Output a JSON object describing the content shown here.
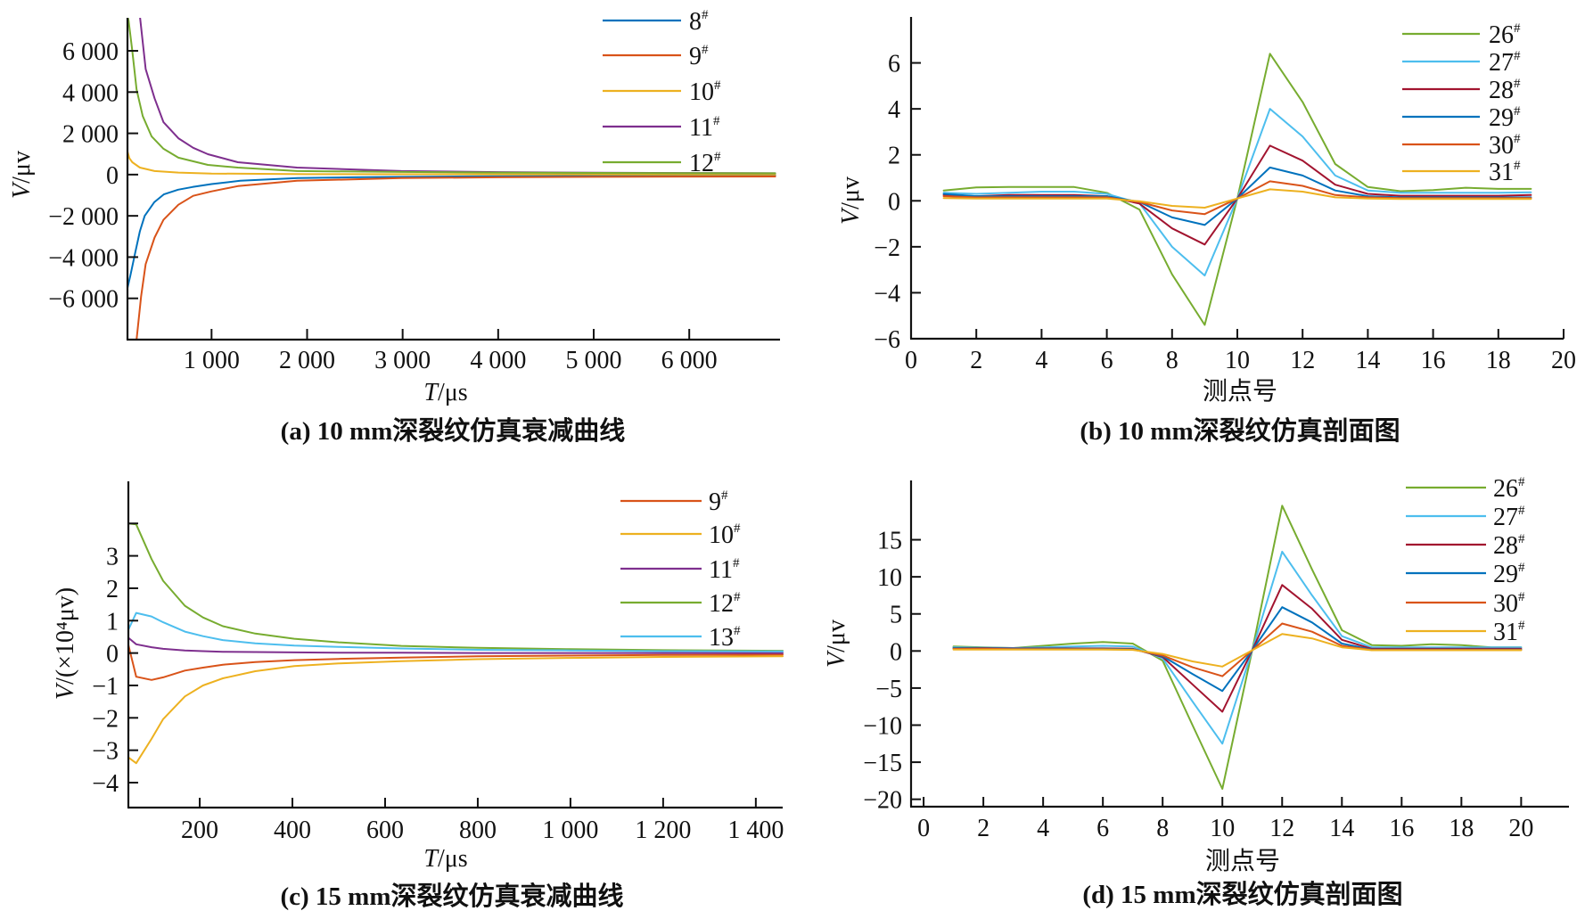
{
  "chart_data": [
    {
      "panel": "a",
      "type": "line",
      "title": "(a) 10 mm深裂纹仿真衰减曲线",
      "xlabel": "T/μs",
      "ylabel": "V/μv",
      "xlim": [
        120,
        6950
      ],
      "ylim": [
        -8000,
        7600
      ],
      "grid": false,
      "legend_position": "top-right",
      "xticks": [
        1000,
        2000,
        3000,
        4000,
        5000,
        6000
      ],
      "xtick_labels": [
        "1 000",
        "2 000",
        "3 000",
        "4 000",
        "5 000",
        "6 000"
      ],
      "yticks": [
        -6000,
        -4000,
        -2000,
        0,
        2000,
        4000,
        6000
      ],
      "ytick_labels": [
        "−6 000",
        "−4 000",
        "−2 000",
        "0",
        "2 000",
        "4 000",
        "6 000"
      ],
      "series": [
        {
          "name": "8#",
          "color": "#0072BD",
          "x": [
            120,
            150,
            200,
            250,
            300,
            400,
            500,
            650,
            800,
            1000,
            1300,
            1900,
            2500,
            3000,
            4000,
            5000,
            6000,
            6900
          ],
          "y": [
            -5500,
            -4900,
            -3800,
            -2750,
            -2000,
            -1340,
            -960,
            -730,
            -600,
            -460,
            -300,
            -170,
            -130,
            -110,
            -80,
            -65,
            -55,
            -50
          ]
        },
        {
          "name": "9#",
          "color": "#D95319",
          "x": [
            190,
            215,
            263,
            310,
            404,
            497,
            653,
            808,
            995,
            1275,
            1895,
            2985,
            4000,
            5000,
            6000,
            6900
          ],
          "y": [
            -9500,
            -8000,
            -5900,
            -4340,
            -3050,
            -2190,
            -1460,
            -1030,
            -820,
            -560,
            -300,
            -170,
            -130,
            -110,
            -95,
            -90
          ]
        },
        {
          "name": "10#",
          "color": "#EDB120",
          "x": [
            120,
            140,
            170,
            250,
            404,
            653,
            1000,
            2000,
            4000,
            6900
          ],
          "y": [
            1120,
            800,
            600,
            340,
            170,
            100,
            50,
            20,
            10,
            5
          ]
        },
        {
          "name": "11#",
          "color": "#7E2F8E",
          "x": [
            240,
            250,
            310,
            404,
            497,
            653,
            808,
            962,
            1275,
            1895,
            2985,
            4000,
            5000,
            6000,
            6900
          ],
          "y": [
            8500,
            7700,
            5120,
            3700,
            2540,
            1760,
            1300,
            990,
            600,
            340,
            170,
            120,
            90,
            75,
            65
          ]
        },
        {
          "name": "12#",
          "color": "#77AC30",
          "x": [
            120,
            131,
            170,
            215,
            280,
            373,
            497,
            653,
            962,
            1275,
            1895,
            2985,
            4000,
            5000,
            6000,
            6900
          ],
          "y": [
            7700,
            7480,
            6000,
            4130,
            2840,
            1850,
            1250,
            820,
            470,
            340,
            170,
            130,
            100,
            80,
            70,
            65
          ]
        }
      ]
    },
    {
      "panel": "b",
      "type": "line",
      "title": "(b) 10 mm深裂纹仿真剖面图",
      "xlabel": "测点号",
      "ylabel": "V/μv",
      "xlim": [
        0,
        20
      ],
      "ylim": [
        -6,
        8
      ],
      "grid": false,
      "legend_position": "top-right",
      "xticks": [
        0,
        2,
        4,
        6,
        8,
        10,
        12,
        14,
        16,
        18,
        20
      ],
      "xtick_labels": [
        "0",
        "2",
        "4",
        "6",
        "8",
        "10",
        "12",
        "14",
        "16",
        "18",
        "20"
      ],
      "yticks": [
        -6,
        -4,
        -2,
        0,
        2,
        4,
        6
      ],
      "ytick_labels": [
        "−6",
        "−4",
        "−2",
        "0",
        "2",
        "4",
        "6"
      ],
      "x": [
        1,
        2,
        3,
        4,
        5,
        6,
        7,
        8,
        9,
        10,
        11,
        12,
        13,
        14,
        15,
        16,
        17,
        18,
        19
      ],
      "series": [
        {
          "name": "26#",
          "color": "#77AC30",
          "y": [
            0.45,
            0.58,
            0.6,
            0.6,
            0.6,
            0.35,
            -0.38,
            -3.2,
            -5.4,
            0.1,
            6.4,
            4.3,
            1.6,
            0.6,
            0.42,
            0.47,
            0.57,
            0.52,
            0.52
          ]
        },
        {
          "name": "27#",
          "color": "#4DBEEE",
          "y": [
            0.35,
            0.3,
            0.35,
            0.4,
            0.4,
            0.3,
            -0.1,
            -2.0,
            -3.25,
            0.1,
            4.0,
            2.8,
            1.1,
            0.45,
            0.35,
            0.35,
            0.35,
            0.35,
            0.37
          ]
        },
        {
          "name": "28#",
          "color": "#A2142F",
          "y": [
            0.25,
            0.2,
            0.25,
            0.25,
            0.25,
            0.2,
            -0.12,
            -1.2,
            -1.9,
            0.1,
            2.4,
            1.75,
            0.7,
            0.3,
            0.22,
            0.22,
            0.22,
            0.22,
            0.25
          ]
        },
        {
          "name": "29#",
          "color": "#0072BD",
          "y": [
            0.3,
            0.2,
            0.2,
            0.2,
            0.2,
            0.2,
            -0.05,
            -0.72,
            -1.05,
            0.1,
            1.45,
            1.1,
            0.45,
            0.2,
            0.15,
            0.15,
            0.15,
            0.15,
            0.15
          ]
        },
        {
          "name": "30#",
          "color": "#D95319",
          "y": [
            0.2,
            0.15,
            0.15,
            0.15,
            0.15,
            0.15,
            -0.05,
            -0.42,
            -0.58,
            0.1,
            0.85,
            0.65,
            0.25,
            0.15,
            0.12,
            0.12,
            0.12,
            0.12,
            0.12
          ]
        },
        {
          "name": "31#",
          "color": "#EDB120",
          "y": [
            0.12,
            0.1,
            0.1,
            0.1,
            0.1,
            0.1,
            -0.02,
            -0.22,
            -0.3,
            0.1,
            0.5,
            0.4,
            0.15,
            0.1,
            0.08,
            0.08,
            0.08,
            0.08,
            0.08
          ]
        }
      ]
    },
    {
      "panel": "c",
      "type": "line",
      "title": "(c) 15 mm深裂纹仿真衰减曲线",
      "xlabel": "T/μs",
      "ylabel": "V/(×10⁴μv)",
      "xlim": [
        46,
        1458
      ],
      "ylim": [
        -4.77,
        5.3
      ],
      "grid": false,
      "legend_position": "top-right",
      "xticks": [
        200,
        400,
        600,
        800,
        1000,
        1200,
        1400
      ],
      "xtick_labels": [
        "200",
        "400",
        "600",
        "800",
        "1 000",
        "1 200",
        "1 400"
      ],
      "yticks": [
        -4,
        -3,
        -2,
        -1,
        0,
        1,
        2,
        3,
        4
      ],
      "ytick_labels": [
        "−4",
        "−3",
        "−2",
        "−1",
        "0",
        "1",
        "2",
        "3",
        ""
      ],
      "series": [
        {
          "name": "9#",
          "color": "#D95319",
          "x": [
            46,
            63,
            96,
            121,
            168,
            207,
            250,
            320,
            404,
            500,
            635,
            800,
            1000,
            1200,
            1458
          ],
          "y": [
            0.25,
            -0.73,
            -0.83,
            -0.75,
            -0.54,
            -0.45,
            -0.36,
            -0.28,
            -0.22,
            -0.18,
            -0.14,
            -0.1,
            -0.08,
            -0.06,
            -0.05
          ]
        },
        {
          "name": "10#",
          "color": "#EDB120",
          "x": [
            46,
            63,
            96,
            121,
            168,
            207,
            250,
            320,
            404,
            500,
            635,
            800,
            1000,
            1200,
            1458
          ],
          "y": [
            -3.22,
            -3.4,
            -2.65,
            -2.04,
            -1.34,
            -1.0,
            -0.78,
            -0.56,
            -0.4,
            -0.32,
            -0.25,
            -0.19,
            -0.15,
            -0.12,
            -0.1
          ]
        },
        {
          "name": "11#",
          "color": "#7E2F8E",
          "x": [
            46,
            63,
            96,
            121,
            168,
            207,
            250,
            320,
            404,
            500,
            635,
            800,
            1000,
            1200,
            1458
          ],
          "y": [
            0.47,
            0.27,
            0.18,
            0.13,
            0.08,
            0.06,
            0.04,
            0.03,
            0.02,
            0.01,
            0.01,
            0.0,
            0.0,
            0.0,
            0.0
          ]
        },
        {
          "name": "12#",
          "color": "#77AC30",
          "x": [
            46,
            63,
            96,
            121,
            168,
            207,
            250,
            320,
            404,
            500,
            635,
            800,
            1000,
            1200,
            1458
          ],
          "y": [
            4.0,
            3.97,
            2.9,
            2.23,
            1.46,
            1.1,
            0.83,
            0.6,
            0.44,
            0.33,
            0.22,
            0.16,
            0.12,
            0.09,
            0.07
          ]
        },
        {
          "name": "13#",
          "color": "#4DBEEE",
          "x": [
            46,
            63,
            96,
            121,
            168,
            207,
            250,
            320,
            404,
            500,
            635,
            800,
            1000,
            1200,
            1458
          ],
          "y": [
            0.72,
            1.24,
            1.13,
            0.95,
            0.66,
            0.52,
            0.4,
            0.3,
            0.23,
            0.19,
            0.14,
            0.1,
            0.08,
            0.06,
            0.05
          ]
        }
      ]
    },
    {
      "panel": "d",
      "type": "line",
      "title": "(d) 15 mm深裂纹仿真剖面图",
      "xlabel": "测点号",
      "ylabel": "V/μv",
      "xlim": [
        -0.42,
        21.6
      ],
      "ylim": [
        -21,
        23
      ],
      "grid": false,
      "legend_position": "top-right",
      "xticks": [
        0,
        2,
        4,
        6,
        8,
        10,
        12,
        14,
        16,
        18,
        20
      ],
      "xtick_labels": [
        "0",
        "2",
        "4",
        "6",
        "8",
        "10",
        "12",
        "14",
        "16",
        "18",
        "20"
      ],
      "yticks": [
        -20,
        -15,
        -10,
        -5,
        0,
        5,
        10,
        15
      ],
      "ytick_labels": [
        "−20",
        "−15",
        "−10",
        "−5",
        "0",
        "5",
        "10",
        "15"
      ],
      "x": [
        1,
        2,
        3,
        4,
        5,
        6,
        7,
        8,
        9,
        10,
        11,
        12,
        13,
        14,
        15,
        16,
        17,
        18,
        19,
        20
      ],
      "series": [
        {
          "name": "26#",
          "color": "#77AC30",
          "y": [
            0.6,
            0.5,
            0.4,
            0.7,
            1.0,
            1.2,
            1.0,
            -1.3,
            -10,
            -18.6,
            0.1,
            19.6,
            11,
            2.8,
            0.8,
            0.7,
            0.9,
            0.8,
            0.5,
            0.5
          ]
        },
        {
          "name": "27#",
          "color": "#4DBEEE",
          "y": [
            0.5,
            0.45,
            0.4,
            0.5,
            0.6,
            0.7,
            0.6,
            -1.0,
            -6.8,
            -12.5,
            0.1,
            13.4,
            7.5,
            2.0,
            0.5,
            0.5,
            0.5,
            0.5,
            0.5,
            0.5
          ]
        },
        {
          "name": "28#",
          "color": "#A2142F",
          "y": [
            0.4,
            0.4,
            0.35,
            0.35,
            0.35,
            0.35,
            0.3,
            -0.8,
            -4.5,
            -8.2,
            0.1,
            8.9,
            5.7,
            1.5,
            0.3,
            0.3,
            0.3,
            0.3,
            0.3,
            0.3
          ]
        },
        {
          "name": "29#",
          "color": "#0072BD",
          "y": [
            0.4,
            0.35,
            0.3,
            0.3,
            0.3,
            0.3,
            0.25,
            -0.7,
            -3.1,
            -5.4,
            0.1,
            5.9,
            3.85,
            1.0,
            0.2,
            0.2,
            0.2,
            0.2,
            0.2,
            0.2
          ]
        },
        {
          "name": "30#",
          "color": "#D95319",
          "y": [
            0.3,
            0.3,
            0.25,
            0.25,
            0.25,
            0.25,
            0.2,
            -0.6,
            -2.2,
            -3.4,
            0.1,
            3.7,
            2.6,
            0.7,
            0.15,
            0.15,
            0.15,
            0.15,
            0.15,
            0.15
          ]
        },
        {
          "name": "31#",
          "color": "#EDB120",
          "y": [
            0.2,
            0.2,
            0.2,
            0.2,
            0.2,
            0.2,
            0.15,
            -0.4,
            -1.4,
            -2.1,
            0.1,
            2.3,
            1.7,
            0.5,
            0.1,
            0.1,
            0.1,
            0.1,
            0.1,
            0.1
          ]
        }
      ]
    }
  ]
}
